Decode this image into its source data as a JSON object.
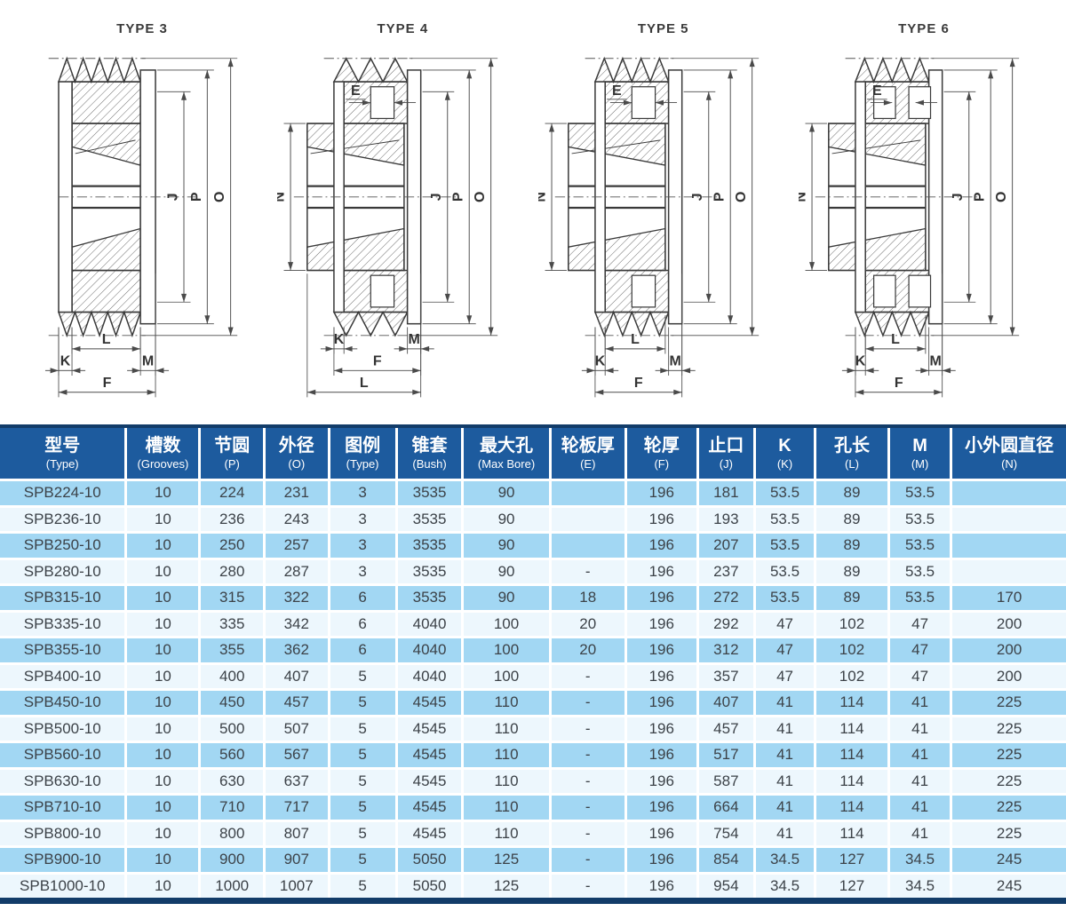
{
  "diagrams": [
    {
      "title": "TYPE 3",
      "right_dims": [
        "J",
        "P",
        "O"
      ],
      "left_dim": null,
      "web_dim": null,
      "bottom_dims": [
        "L",
        "K",
        "M",
        "F"
      ]
    },
    {
      "title": "TYPE 4",
      "right_dims": [
        "J",
        "P",
        "O"
      ],
      "left_dim": "N",
      "web_dim": "E",
      "bottom_dims": [
        "K",
        "M",
        "F",
        "L"
      ]
    },
    {
      "title": "TYPE 5",
      "right_dims": [
        "J",
        "P",
        "O"
      ],
      "left_dim": "N",
      "web_dim": "E",
      "bottom_dims": [
        "L",
        "K",
        "M",
        "F"
      ]
    },
    {
      "title": "TYPE 6",
      "right_dims": [
        "J",
        "P",
        "O"
      ],
      "left_dim": "N",
      "web_dim": "E",
      "bottom_dims": [
        "L",
        "K",
        "M",
        "F"
      ]
    }
  ],
  "table": {
    "headers": [
      {
        "zh": "型号",
        "en": "(Type)"
      },
      {
        "zh": "槽数",
        "en": "(Grooves)"
      },
      {
        "zh": "节圆",
        "en": "(P)"
      },
      {
        "zh": "外径",
        "en": "(O)"
      },
      {
        "zh": "图例",
        "en": "(Type)"
      },
      {
        "zh": "锥套",
        "en": "(Bush)"
      },
      {
        "zh": "最大孔",
        "en": "(Max Bore)"
      },
      {
        "zh": "轮板厚",
        "en": "(E)"
      },
      {
        "zh": "轮厚",
        "en": "(F)"
      },
      {
        "zh": "止口",
        "en": "(J)"
      },
      {
        "zh": "K",
        "en": "(K)"
      },
      {
        "zh": "孔长",
        "en": "(L)"
      },
      {
        "zh": "M",
        "en": "(M)"
      },
      {
        "zh": "小外圆直径",
        "en": "(N)"
      }
    ],
    "rows": [
      [
        "SPB224-10",
        "10",
        "224",
        "231",
        "3",
        "3535",
        "90",
        "",
        "196",
        "181",
        "53.5",
        "89",
        "53.5",
        ""
      ],
      [
        "SPB236-10",
        "10",
        "236",
        "243",
        "3",
        "3535",
        "90",
        "",
        "196",
        "193",
        "53.5",
        "89",
        "53.5",
        ""
      ],
      [
        "SPB250-10",
        "10",
        "250",
        "257",
        "3",
        "3535",
        "90",
        "",
        "196",
        "207",
        "53.5",
        "89",
        "53.5",
        ""
      ],
      [
        "SPB280-10",
        "10",
        "280",
        "287",
        "3",
        "3535",
        "90",
        "-",
        "196",
        "237",
        "53.5",
        "89",
        "53.5",
        ""
      ],
      [
        "SPB315-10",
        "10",
        "315",
        "322",
        "6",
        "3535",
        "90",
        "18",
        "196",
        "272",
        "53.5",
        "89",
        "53.5",
        "170"
      ],
      [
        "SPB335-10",
        "10",
        "335",
        "342",
        "6",
        "4040",
        "100",
        "20",
        "196",
        "292",
        "47",
        "102",
        "47",
        "200"
      ],
      [
        "SPB355-10",
        "10",
        "355",
        "362",
        "6",
        "4040",
        "100",
        "20",
        "196",
        "312",
        "47",
        "102",
        "47",
        "200"
      ],
      [
        "SPB400-10",
        "10",
        "400",
        "407",
        "5",
        "4040",
        "100",
        "-",
        "196",
        "357",
        "47",
        "102",
        "47",
        "200"
      ],
      [
        "SPB450-10",
        "10",
        "450",
        "457",
        "5",
        "4545",
        "110",
        "-",
        "196",
        "407",
        "41",
        "114",
        "41",
        "225"
      ],
      [
        "SPB500-10",
        "10",
        "500",
        "507",
        "5",
        "4545",
        "110",
        "-",
        "196",
        "457",
        "41",
        "114",
        "41",
        "225"
      ],
      [
        "SPB560-10",
        "10",
        "560",
        "567",
        "5",
        "4545",
        "110",
        "-",
        "196",
        "517",
        "41",
        "114",
        "41",
        "225"
      ],
      [
        "SPB630-10",
        "10",
        "630",
        "637",
        "5",
        "4545",
        "110",
        "-",
        "196",
        "587",
        "41",
        "114",
        "41",
        "225"
      ],
      [
        "SPB710-10",
        "10",
        "710",
        "717",
        "5",
        "4545",
        "110",
        "-",
        "196",
        "664",
        "41",
        "114",
        "41",
        "225"
      ],
      [
        "SPB800-10",
        "10",
        "800",
        "807",
        "5",
        "4545",
        "110",
        "-",
        "196",
        "754",
        "41",
        "114",
        "41",
        "225"
      ],
      [
        "SPB900-10",
        "10",
        "900",
        "907",
        "5",
        "5050",
        "125",
        "-",
        "196",
        "854",
        "34.5",
        "127",
        "34.5",
        "245"
      ],
      [
        "SPB1000-10",
        "10",
        "1000",
        "1007",
        "5",
        "5050",
        "125",
        "-",
        "196",
        "954",
        "34.5",
        "127",
        "34.5",
        "245"
      ]
    ]
  },
  "colors": {
    "header_bg": "#1d5b9e",
    "border_strip": "#123c69",
    "row_odd": "#a2d7f3",
    "row_even": "#edf7fd",
    "cell_text": "#3c4248",
    "line": "#3a3a3a"
  }
}
